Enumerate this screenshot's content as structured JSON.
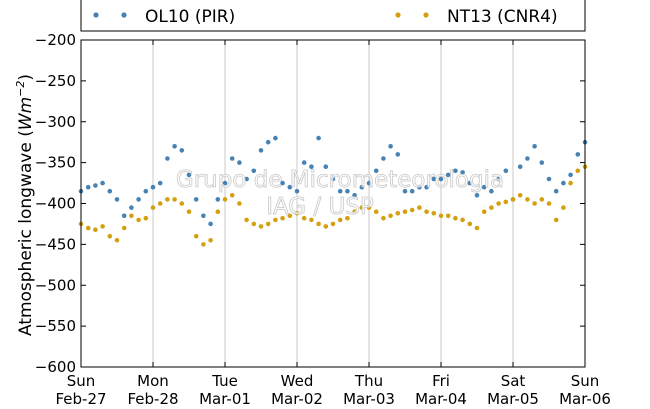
{
  "chart_data": {
    "type": "scatter",
    "ylabel_text": "Atmospheric longwave (",
    "ylabel_unit": "Wm",
    "ylabel_exp": "−2",
    "ylabel_close": ")",
    "ylim": [
      -600,
      -200
    ],
    "y_ticks": [
      -600,
      -550,
      -500,
      -450,
      -400,
      -350,
      -300,
      -250,
      -200
    ],
    "y_tick_labels": [
      "−600",
      "−550",
      "−500",
      "−450",
      "−400",
      "−350",
      "−300",
      "−250",
      "−200"
    ],
    "xlim": [
      "2011-02-27 00:00",
      "2011-03-06 00:00"
    ],
    "x_ticks": [
      {
        "day": 0,
        "line1": "Sun",
        "line2": "Feb-27"
      },
      {
        "day": 1,
        "line1": "Mon",
        "line2": "Feb-28"
      },
      {
        "day": 2,
        "line1": "Tue",
        "line2": "Mar-01"
      },
      {
        "day": 3,
        "line1": "Wed",
        "line2": "Mar-02"
      },
      {
        "day": 4,
        "line1": "Thu",
        "line2": "Mar-03"
      },
      {
        "day": 5,
        "line1": "Fri",
        "line2": "Mar-04"
      },
      {
        "day": 6,
        "line1": "Sat",
        "line2": "Mar-05"
      },
      {
        "day": 7,
        "line1": "Sun",
        "line2": "Mar-06"
      }
    ],
    "grid": "vertical",
    "legend_position": "top",
    "watermark": [
      "Grupo de Micrometeorologia",
      "IAG / USP"
    ],
    "series": [
      {
        "name": "OL10 (PIR)",
        "color": "#4682b4",
        "x_days": [
          0.0,
          0.1,
          0.2,
          0.3,
          0.4,
          0.5,
          0.6,
          0.7,
          0.8,
          0.9,
          1.0,
          1.1,
          1.2,
          1.3,
          1.4,
          1.5,
          1.6,
          1.7,
          1.8,
          1.9,
          2.0,
          2.1,
          2.2,
          2.3,
          2.4,
          2.5,
          2.6,
          2.7,
          2.8,
          2.9,
          3.0,
          3.1,
          3.2,
          3.3,
          3.4,
          3.5,
          3.6,
          3.7,
          3.8,
          3.9,
          4.0,
          4.1,
          4.2,
          4.3,
          4.4,
          4.5,
          4.6,
          4.7,
          4.8,
          4.9,
          5.0,
          5.1,
          5.2,
          5.3,
          5.4,
          5.5,
          5.6,
          5.7,
          5.8,
          5.9,
          6.0,
          6.1,
          6.2,
          6.3,
          6.4,
          6.5,
          6.6,
          6.7,
          6.8,
          6.9,
          7.0
        ],
        "y": [
          -385,
          -380,
          -378,
          -375,
          -385,
          -395,
          -415,
          -405,
          -395,
          -385,
          -380,
          -375,
          -345,
          -330,
          -335,
          -365,
          -395,
          -415,
          -425,
          -395,
          -375,
          -345,
          -350,
          -370,
          -360,
          -335,
          -325,
          -320,
          -375,
          -380,
          -385,
          -350,
          -355,
          -320,
          -355,
          -370,
          -385,
          -385,
          -390,
          -380,
          -375,
          -360,
          -345,
          -330,
          -340,
          -385,
          -385,
          -380,
          -380,
          -370,
          -370,
          -365,
          -360,
          -362,
          -375,
          -390,
          -380,
          -385,
          -370,
          -360,
          -395,
          -355,
          -345,
          -330,
          -350,
          -370,
          -385,
          -375,
          -365,
          -340,
          -325
        ]
      },
      {
        "name": "NT13 (CNR4)",
        "color": "#d4a00f",
        "x_days": [
          0.0,
          0.1,
          0.2,
          0.3,
          0.4,
          0.5,
          0.6,
          0.7,
          0.8,
          0.9,
          1.0,
          1.1,
          1.2,
          1.3,
          1.4,
          1.5,
          1.6,
          1.7,
          1.8,
          1.9,
          2.0,
          2.1,
          2.2,
          2.3,
          2.4,
          2.5,
          2.6,
          2.7,
          2.8,
          2.9,
          3.0,
          3.1,
          3.2,
          3.3,
          3.4,
          3.5,
          3.6,
          3.7,
          3.8,
          3.9,
          4.0,
          4.1,
          4.2,
          4.3,
          4.4,
          4.5,
          4.6,
          4.7,
          4.8,
          4.9,
          5.0,
          5.1,
          5.2,
          5.3,
          5.4,
          5.5,
          5.6,
          5.7,
          5.8,
          5.9,
          6.0,
          6.1,
          6.2,
          6.3,
          6.4,
          6.5,
          6.6,
          6.7,
          6.8,
          6.9,
          7.0
        ],
        "y": [
          -425,
          -430,
          -432,
          -428,
          -440,
          -445,
          -430,
          -415,
          -420,
          -418,
          -405,
          -400,
          -395,
          -395,
          -400,
          -410,
          -440,
          -450,
          -445,
          -410,
          -395,
          -390,
          -400,
          -420,
          -425,
          -428,
          -425,
          -420,
          -418,
          -415,
          -412,
          -418,
          -420,
          -425,
          -428,
          -425,
          -420,
          -418,
          -410,
          -405,
          -405,
          -410,
          -418,
          -415,
          -412,
          -410,
          -408,
          -405,
          -410,
          -412,
          -415,
          -415,
          -418,
          -420,
          -425,
          -430,
          -410,
          -405,
          -400,
          -398,
          -395,
          -390,
          -395,
          -400,
          -395,
          -400,
          -420,
          -405,
          -375,
          -360,
          -355
        ]
      }
    ]
  }
}
